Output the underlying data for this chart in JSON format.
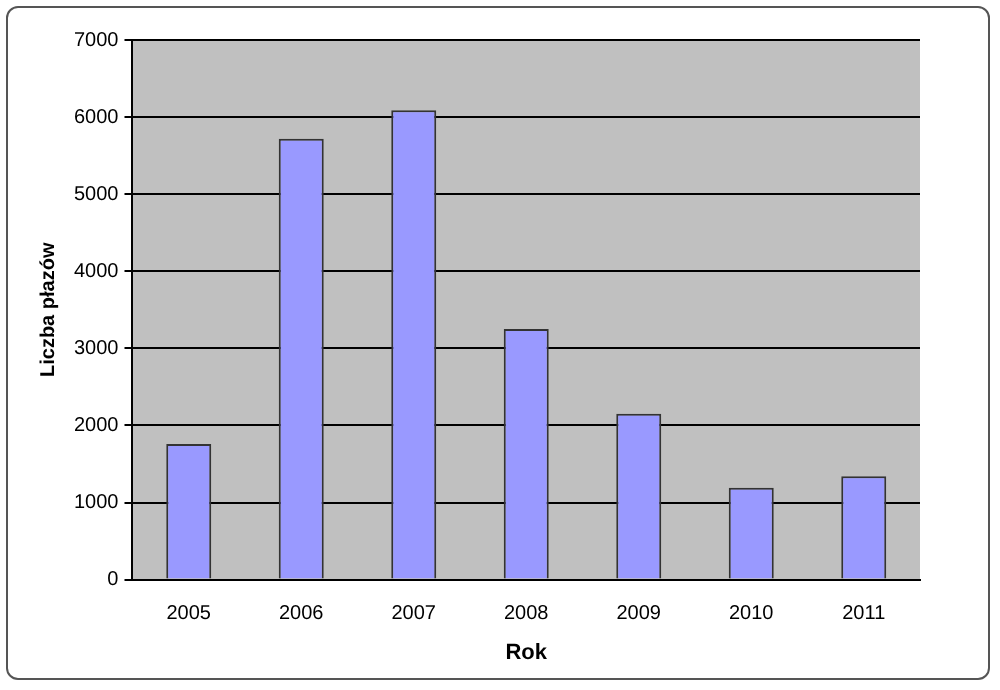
{
  "chart_data": {
    "type": "bar",
    "xlabel": "Rok",
    "ylabel": "Liczba płazów",
    "categories": [
      "2005",
      "2006",
      "2007",
      "2008",
      "2009",
      "2010",
      "2011"
    ],
    "values": [
      1760,
      5720,
      6090,
      3250,
      2150,
      1190,
      1340
    ],
    "color": "#9999ff",
    "ylim": [
      0,
      7000
    ],
    "yticks": [
      0,
      1000,
      2000,
      3000,
      4000,
      5000,
      6000,
      7000
    ],
    "grid": "y",
    "legend": false
  }
}
